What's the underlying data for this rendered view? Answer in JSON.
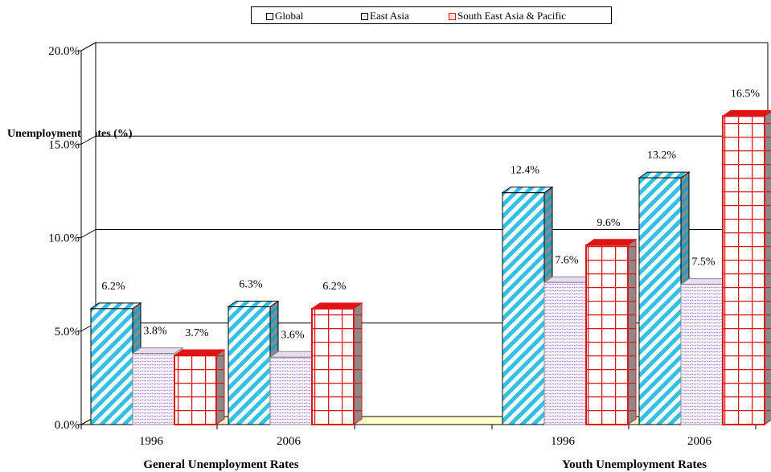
{
  "chart_data": {
    "type": "bar",
    "ylabel": "Unemployment Rates (%)",
    "ylim": [
      0,
      20
    ],
    "y_ticks": [
      "0.0%",
      "5.0%",
      "10.0%",
      "15.0%",
      "20.0%"
    ],
    "grid": true,
    "legend_position": "top",
    "groups": [
      {
        "label": "General Unemployment Rates",
        "categories": [
          "1996",
          "2006"
        ],
        "series": [
          {
            "name": "Global",
            "values": [
              6.2,
              6.3
            ],
            "labels": [
              "6.2%",
              "6.3%"
            ]
          },
          {
            "name": "East Asia",
            "values": [
              3.8,
              3.6
            ],
            "labels": [
              "3.8%",
              "3.6%"
            ]
          },
          {
            "name": "South East Asia & Pacific",
            "values": [
              3.7,
              6.2
            ],
            "labels": [
              "3.7%",
              "6.2%"
            ]
          }
        ]
      },
      {
        "label": "Youth Unemployment Rates",
        "categories": [
          "1996",
          "2006"
        ],
        "series": [
          {
            "name": "Global",
            "values": [
              12.4,
              13.2
            ],
            "labels": [
              "12.4%",
              "13.2%"
            ]
          },
          {
            "name": "East Asia",
            "values": [
              7.6,
              7.5
            ],
            "labels": [
              "7.6%",
              "7.5%"
            ]
          },
          {
            "name": "South East Asia & Pacific",
            "values": [
              9.6,
              16.5
            ],
            "labels": [
              "9.6%",
              "16.5%"
            ]
          }
        ]
      }
    ]
  },
  "legend": {
    "items": [
      {
        "label": "Global",
        "color": "#33bfe6"
      },
      {
        "label": "East Asia",
        "color": "#b07fe0"
      },
      {
        "label": "South East Asia & Pacific",
        "color": "#e01414"
      }
    ]
  },
  "colors": {
    "global": "#33bfe6",
    "east_asia": "#b07fe0",
    "sea_pacific": "#e01414",
    "floor": "#ffffcc"
  }
}
